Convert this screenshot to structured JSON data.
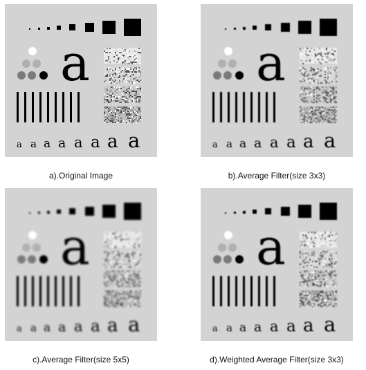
{
  "panels": [
    {
      "id": "a",
      "caption": "a).Original Image"
    },
    {
      "id": "b",
      "caption": "b).Average Filter(size 3x3)"
    },
    {
      "id": "c",
      "caption": "c).Average Filter(size 5x5)"
    },
    {
      "id": "d",
      "caption": "d).Weighted Average Filter(size 3x3)"
    }
  ],
  "test_pattern": {
    "large_glyph": "a",
    "small_glyphs": [
      "a",
      "a",
      "a",
      "a",
      "a",
      "a",
      "a",
      "a"
    ]
  },
  "colors": {
    "panel_background": "#d3d3d3",
    "foreground": "#000000",
    "circle_white": "#ffffff",
    "circle_light": "#b0b0b0",
    "circle_mid": "#7a7a7a",
    "circle_dark": "#000000"
  }
}
